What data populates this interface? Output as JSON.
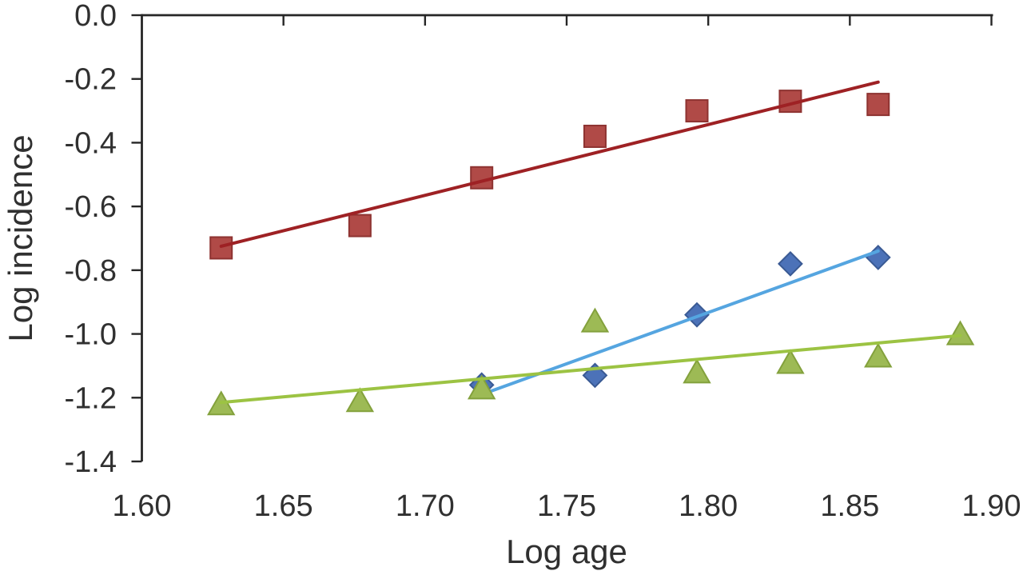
{
  "chart_data": {
    "type": "scatter",
    "title": "",
    "xlabel": "Log age",
    "ylabel": "Log incidence",
    "xlim": [
      1.6,
      1.9
    ],
    "ylim": [
      -1.4,
      0.0
    ],
    "x_tick_labels": [
      "1.60",
      "1.65",
      "1.70",
      "1.75",
      "1.80",
      "1.85",
      "1.90"
    ],
    "y_tick_labels": [
      "0.0",
      "-0.2",
      "-0.4",
      "-0.6",
      "-0.8",
      "-1.0",
      "-1.2",
      "-1.4"
    ],
    "grid": false,
    "legend": false,
    "axis_color": "#262626",
    "text_color": "#303030",
    "background_color": "#ffffff",
    "series": [
      {
        "name": "red-squares",
        "marker": "square",
        "marker_fill": "#b04a47",
        "marker_stroke": "#8e3331",
        "trend_color": "#9e2124",
        "points": [
          [
            1.628,
            -0.73
          ],
          [
            1.677,
            -0.66
          ],
          [
            1.72,
            -0.51
          ],
          [
            1.76,
            -0.38
          ],
          [
            1.796,
            -0.3
          ],
          [
            1.829,
            -0.27
          ],
          [
            1.86,
            -0.28
          ]
        ],
        "trendline": [
          [
            1.628,
            -0.725
          ],
          [
            1.86,
            -0.21
          ]
        ]
      },
      {
        "name": "blue-diamonds",
        "marker": "diamond",
        "marker_fill": "#4c72b8",
        "marker_stroke": "#3a5a94",
        "trend_color": "#55a5e0",
        "points": [
          [
            1.72,
            -1.16
          ],
          [
            1.76,
            -1.13
          ],
          [
            1.796,
            -0.94
          ],
          [
            1.829,
            -0.78
          ],
          [
            1.86,
            -0.76
          ]
        ],
        "trendline": [
          [
            1.72,
            -1.19
          ],
          [
            1.86,
            -0.74
          ]
        ]
      },
      {
        "name": "green-triangles",
        "marker": "triangle",
        "marker_fill": "#9dba55",
        "marker_stroke": "#83a13c",
        "trend_color": "#9cc343",
        "points": [
          [
            1.628,
            -1.22
          ],
          [
            1.677,
            -1.21
          ],
          [
            1.72,
            -1.17
          ],
          [
            1.76,
            -0.96
          ],
          [
            1.796,
            -1.12
          ],
          [
            1.829,
            -1.09
          ],
          [
            1.86,
            -1.07
          ],
          [
            1.889,
            -1.0
          ]
        ],
        "trendline": [
          [
            1.628,
            -1.215
          ],
          [
            1.889,
            -1.005
          ]
        ]
      }
    ]
  }
}
